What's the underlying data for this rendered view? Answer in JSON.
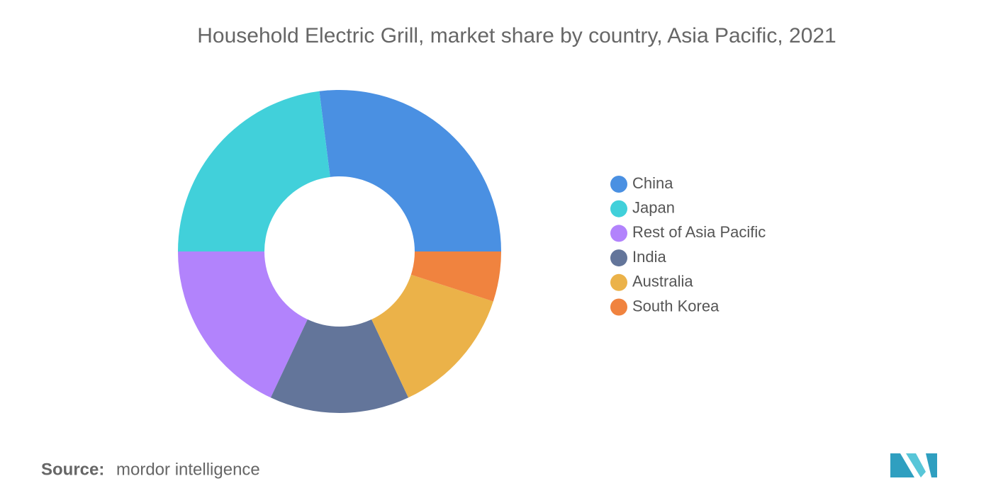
{
  "chart_data": {
    "type": "donut",
    "title": "Household Electric Grill, market share by country, Asia Pacific, 2021",
    "categories": [
      "China",
      "Japan",
      "Rest of Asia Pacific",
      "India",
      "Australia",
      "South Korea"
    ],
    "values": [
      27,
      23,
      18,
      14,
      13,
      5
    ],
    "colors": [
      "#4a90e2",
      "#41d0da",
      "#b283fc",
      "#63759a",
      "#ebb249",
      "#f0833f"
    ],
    "legend": "right"
  },
  "source": {
    "label": "Source:",
    "text": "mordor intelligence"
  }
}
